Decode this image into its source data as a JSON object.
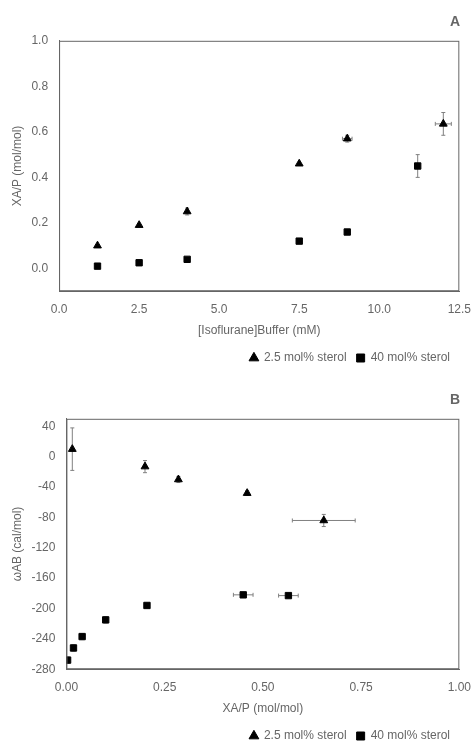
{
  "chart_data": [
    {
      "type": "scatter",
      "title": "A",
      "xlabel": "[Isoflurane]Buffer (mM)",
      "ylabel": "XA/P (mol/mol)",
      "xlim": [
        0.0,
        12.5
      ],
      "ylim": [
        -0.1,
        1.0
      ],
      "xticks": [
        {
          "value": 0.0,
          "label": "0.0"
        },
        2.5,
        {
          "value": 5.0,
          "label": "5.0"
        },
        7.5,
        {
          "value": 10.0,
          "label": "10.0"
        },
        12.5
      ],
      "yticks": [
        {
          "value": 0.0,
          "label": "0.0"
        },
        0.2,
        0.4,
        0.6,
        0.8,
        {
          "value": 1.0,
          "label": "1.0"
        }
      ],
      "grid": false,
      "legend": "lower right",
      "series": [
        {
          "name": "2.5 mol% sterol",
          "color": "black",
          "marker": "triangle",
          "x": [
            1.2,
            2.5,
            4.0,
            7.5,
            9.0,
            12.0
          ],
          "values": [
            0.1,
            0.19,
            0.25,
            0.46,
            0.57,
            0.635
          ],
          "x_err": [
            0.0,
            0.0,
            0.0,
            0.0,
            0.15,
            0.25
          ],
          "y_err": [
            0.0,
            0.0,
            0.015,
            0.0,
            0.015,
            0.05
          ]
        },
        {
          "name": "40 mol% sterol",
          "color": "black",
          "marker": "square",
          "x": [
            1.2,
            2.5,
            4.0,
            7.5,
            9.0,
            11.2
          ],
          "values": [
            0.01,
            0.025,
            0.04,
            0.12,
            0.16,
            0.45
          ],
          "x_err": [
            0.0,
            0.0,
            0.0,
            0.0,
            0.0,
            0.0
          ],
          "y_err": [
            0.0,
            0.0,
            0.0,
            0.01,
            0.0,
            0.05
          ]
        }
      ]
    },
    {
      "type": "scatter",
      "title": "B",
      "xlabel": "XA/P (mol/mol)",
      "ylabel": "ωAB (cal/mol)",
      "xlim": [
        0.0,
        1.0
      ],
      "ylim": [
        -280,
        50
      ],
      "xticks": [
        {
          "value": 0.0,
          "label": "0.00"
        },
        {
          "value": 0.25,
          "label": "0.25"
        },
        {
          "value": 0.5,
          "label": "0.50"
        },
        {
          "value": 0.75,
          "label": "0.75"
        },
        {
          "value": 1.0,
          "label": "1.00"
        }
      ],
      "yticks": [
        -280,
        -240,
        -200,
        -160,
        -120,
        -80,
        -40,
        0,
        40
      ],
      "grid": false,
      "legend": "lower right",
      "series": [
        {
          "name": "2.5 mol% sterol",
          "color": "black",
          "marker": "triangle",
          "x": [
            0.015,
            0.2,
            0.285,
            0.46,
            0.655
          ],
          "values": [
            10,
            -13,
            -30,
            -48,
            -84
          ],
          "x_err": [
            0.0,
            0.0,
            0.0,
            0.0,
            0.08
          ],
          "y_err": [
            28,
            8,
            4,
            3,
            8
          ]
        },
        {
          "name": "40 mol% sterol",
          "color": "black",
          "marker": "square",
          "x": [
            0.003,
            0.018,
            0.04,
            0.1,
            0.205,
            0.45,
            0.565
          ],
          "values": [
            -268,
            -252,
            -237,
            -215,
            -196,
            -182,
            -183
          ],
          "x_err": [
            0.0,
            0.0,
            0.0,
            0.005,
            0.005,
            0.025,
            0.025
          ],
          "y_err": [
            4,
            4,
            4,
            4,
            0,
            0,
            0
          ]
        }
      ]
    }
  ]
}
